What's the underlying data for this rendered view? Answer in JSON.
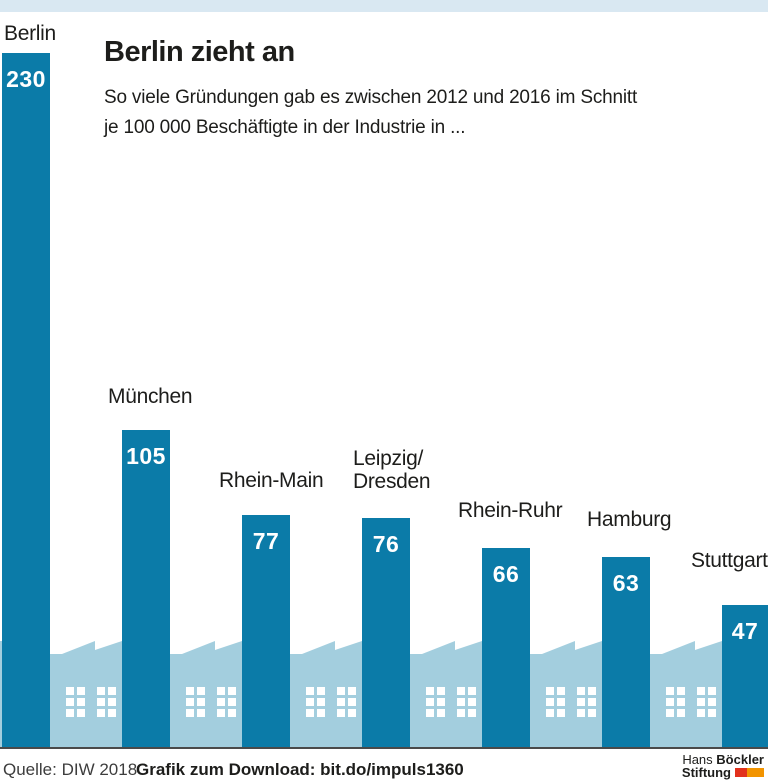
{
  "page": {
    "background": "#ffffff",
    "top_strip_color": "#d9e8f2"
  },
  "header": {
    "title": "Berlin zieht an",
    "subtitle_lines": [
      "So viele Gründungen gab es zwischen 2012 und 2016 im Schnitt",
      "je 100 000 Beschäftigte in der Industrie in ..."
    ]
  },
  "chart_data": {
    "type": "bar",
    "title": "Berlin zieht an",
    "subtitle": "So viele Gründungen gab es zwischen 2012 und 2016 im Schnitt je 100 000 Beschäftigte in der Industrie in ...",
    "categories": [
      "Berlin",
      "München",
      "Rhein-Main",
      "Leipzig/Dresden",
      "Rhein-Ruhr",
      "Hamburg",
      "Stuttgart"
    ],
    "values": [
      230,
      105,
      77,
      76,
      66,
      63,
      47
    ],
    "bars": [
      {
        "label_lines": [
          "Berlin"
        ],
        "value": 230,
        "label_dx": 2,
        "label_gap": 8
      },
      {
        "label_lines": [
          "München"
        ],
        "value": 105,
        "label_dx": -14,
        "label_gap": 22
      },
      {
        "label_lines": [
          "Rhein-Main"
        ],
        "value": 77,
        "label_dx": -23,
        "label_gap": 23
      },
      {
        "label_lines": [
          "Leipzig/",
          "Dresden"
        ],
        "value": 76,
        "label_dx": -9,
        "label_gap": 25
      },
      {
        "label_lines": [
          "Rhein-Ruhr"
        ],
        "value": 66,
        "label_dx": -24,
        "label_gap": 26
      },
      {
        "label_lines": [
          "Hamburg"
        ],
        "value": 63,
        "label_dx": -15,
        "label_gap": 26
      },
      {
        "label_lines": [
          "Stuttgart"
        ],
        "value": 47,
        "label_dx": -31,
        "label_gap": 33
      }
    ],
    "bar_color": "#0b7ba8",
    "value_text_color": "#ffffff",
    "ylim": [
      0,
      230
    ],
    "grid": false,
    "legend": "none"
  },
  "decoration": {
    "factory_color": "#a3cede",
    "window_color": "#ffffff"
  },
  "footer": {
    "source": "Quelle: DIW 2018",
    "download": "Grafik zum Download: bit.do/impuls1360",
    "divider_color": "#4a4a4a",
    "logo": {
      "name_regular": "Hans",
      "name_bold": "Böckler",
      "line2": "Stiftung",
      "mark_red": "#e2311c",
      "mark_orange": "#f29400"
    }
  }
}
